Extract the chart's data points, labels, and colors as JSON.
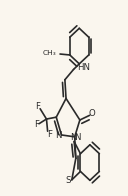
{
  "bg_color": "#faf6ee",
  "line_color": "#2a2a2a",
  "lw": 1.2,
  "fs": 6.2,
  "figsize": [
    1.28,
    1.96
  ],
  "dpi": 100,
  "xlim": [
    -0.05,
    1.05
  ],
  "ylim": [
    -0.02,
    1.02
  ],
  "dbl_off": 0.022
}
